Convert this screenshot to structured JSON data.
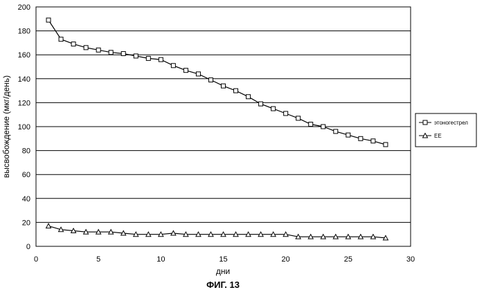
{
  "chart_data": {
    "type": "line",
    "title": "",
    "xlabel": "дни",
    "ylabel": "высвобождение (мкг/день)",
    "caption": "ФИГ. 13",
    "xlim": [
      0,
      30
    ],
    "ylim": [
      0,
      200
    ],
    "x_ticks": [
      0,
      5,
      10,
      15,
      20,
      25,
      30
    ],
    "y_ticks": [
      0,
      20,
      40,
      60,
      80,
      100,
      120,
      140,
      160,
      180,
      200
    ],
    "grid": "horizontal",
    "legend_position": "right",
    "x": [
      1,
      2,
      3,
      4,
      5,
      6,
      7,
      8,
      9,
      10,
      11,
      12,
      13,
      14,
      15,
      16,
      17,
      18,
      19,
      20,
      21,
      22,
      23,
      24,
      25,
      26,
      27,
      28
    ],
    "series": [
      {
        "name": "этоногестрел",
        "marker": "square",
        "values": [
          189,
          173,
          169,
          166,
          164,
          162,
          161,
          159,
          157,
          156,
          151,
          147,
          144,
          139,
          134,
          130,
          125,
          119,
          115,
          111,
          107,
          102,
          100,
          96,
          93,
          90,
          88,
          85
        ]
      },
      {
        "name": "EE",
        "marker": "triangle",
        "values": [
          17,
          14,
          13,
          12,
          12,
          12,
          11,
          10,
          10,
          10,
          11,
          10,
          10,
          10,
          10,
          10,
          10,
          10,
          10,
          10,
          8,
          8,
          8,
          8,
          8,
          8,
          8,
          7
        ]
      }
    ]
  }
}
